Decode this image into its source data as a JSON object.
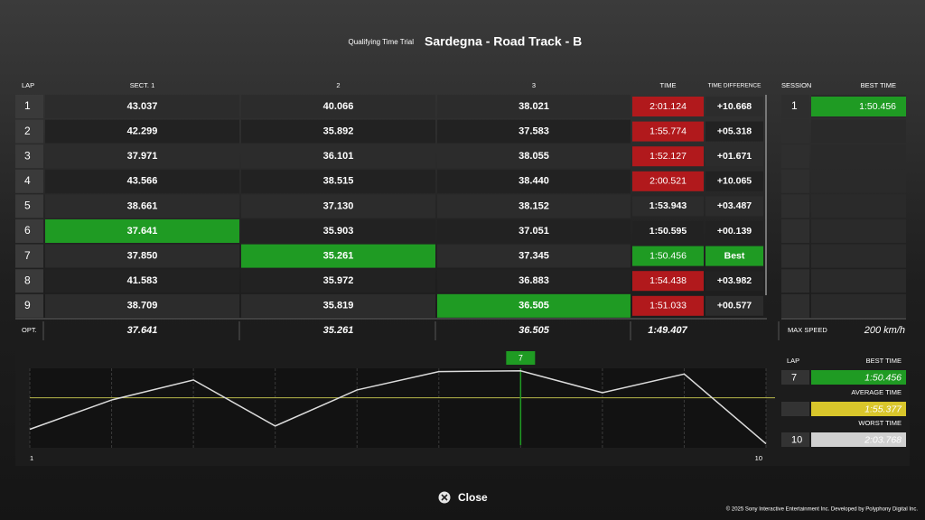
{
  "header": {
    "subtitle": "Qualifying Time Trial",
    "title": "Sardegna - Road Track - B"
  },
  "table": {
    "columns": [
      "LAP",
      "SECT. 1",
      "2",
      "3",
      "TIME",
      "TIME DIFFERENCE"
    ],
    "rows": [
      {
        "lap": "1",
        "sectors": [
          "43.037",
          "40.066",
          "38.021"
        ],
        "time": "2:01.124",
        "diff": "+10.668",
        "time_color": "red"
      },
      {
        "lap": "2",
        "sectors": [
          "42.299",
          "35.892",
          "37.583"
        ],
        "time": "1:55.774",
        "diff": "+05.318",
        "time_color": "red"
      },
      {
        "lap": "3",
        "sectors": [
          "37.971",
          "36.101",
          "38.055"
        ],
        "time": "1:52.127",
        "diff": "+01.671",
        "time_color": "red"
      },
      {
        "lap": "4",
        "sectors": [
          "43.566",
          "38.515",
          "38.440"
        ],
        "time": "2:00.521",
        "diff": "+10.065",
        "time_color": "red"
      },
      {
        "lap": "5",
        "sectors": [
          "38.661",
          "37.130",
          "38.152"
        ],
        "time": "1:53.943",
        "diff": "+03.487"
      },
      {
        "lap": "6",
        "sectors": [
          "37.641",
          "35.903",
          "37.051"
        ],
        "time": "1:50.595",
        "diff": "+00.139",
        "sector_colors": [
          "green",
          null,
          null
        ]
      },
      {
        "lap": "7",
        "sectors": [
          "37.850",
          "35.261",
          "37.345"
        ],
        "time": "1:50.456",
        "diff": "Best",
        "time_color": "green",
        "diff_color": "green",
        "sector_colors": [
          null,
          "green",
          null
        ]
      },
      {
        "lap": "8",
        "sectors": [
          "41.583",
          "35.972",
          "36.883"
        ],
        "time": "1:54.438",
        "diff": "+03.982",
        "time_color": "red"
      },
      {
        "lap": "9",
        "sectors": [
          "38.709",
          "35.819",
          "36.505"
        ],
        "time": "1:51.033",
        "diff": "+00.577",
        "time_color": "red",
        "sector_colors": [
          null,
          null,
          "green"
        ]
      }
    ],
    "optimal": {
      "label": "OPT.",
      "sectors": [
        "37.641",
        "35.261",
        "36.505"
      ],
      "time": "1:49.407"
    }
  },
  "session": {
    "columns": [
      "SESSION",
      "BEST TIME"
    ],
    "rows": [
      {
        "session": "1",
        "best_time": "1:50.456",
        "color": "green"
      }
    ],
    "max_speed_label": "MAX SPEED",
    "max_speed": "200 km/h"
  },
  "colors": {
    "green": "#1f9b23",
    "red": "#b1191c",
    "yellow": "#d9c62b",
    "grey": "#d0d0d0"
  },
  "graph": {
    "type": "line",
    "x": [
      1,
      2,
      3,
      4,
      5,
      6,
      7,
      8,
      9,
      10
    ],
    "xlim": [
      1,
      10
    ],
    "xticks": [
      1,
      10
    ],
    "ylim": [
      124.5,
      110
    ],
    "values": [
      121.124,
      115.774,
      112.127,
      120.521,
      113.943,
      110.595,
      110.456,
      114.438,
      111.033,
      123.768
    ],
    "average_line": 115.377,
    "marker_lap": 7,
    "line_color": "#dcdcdc",
    "average_color": "#b9b94c",
    "marker_color": "#1f9b23"
  },
  "summary": {
    "lap_label": "LAP",
    "best_time_label": "BEST TIME",
    "best_lap": "7",
    "best_time": "1:50.456",
    "average_label": "AVERAGE TIME",
    "average_time": "1:55.377",
    "worst_label": "WORST TIME",
    "worst_lap": "10",
    "worst_time": "2:03.768"
  },
  "footer": {
    "close": "Close",
    "copyright": "© 2025 Sony Interactive Entertainment Inc. Developed by Polyphony Digital Inc."
  }
}
